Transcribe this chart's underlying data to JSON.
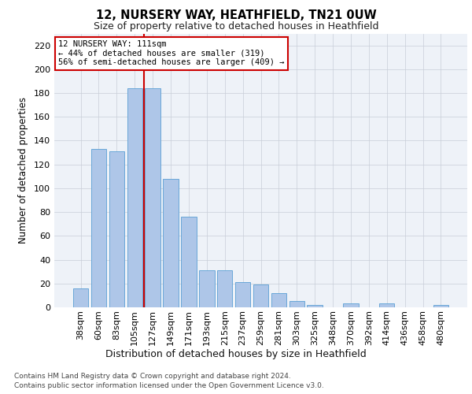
{
  "title1": "12, NURSERY WAY, HEATHFIELD, TN21 0UW",
  "title2": "Size of property relative to detached houses in Heathfield",
  "xlabel": "Distribution of detached houses by size in Heathfield",
  "ylabel": "Number of detached properties",
  "categories": [
    "38sqm",
    "60sqm",
    "83sqm",
    "105sqm",
    "127sqm",
    "149sqm",
    "171sqm",
    "193sqm",
    "215sqm",
    "237sqm",
    "259sqm",
    "281sqm",
    "303sqm",
    "325sqm",
    "348sqm",
    "370sqm",
    "392sqm",
    "414sqm",
    "436sqm",
    "458sqm",
    "480sqm"
  ],
  "values": [
    16,
    133,
    131,
    184,
    184,
    108,
    76,
    31,
    31,
    21,
    19,
    12,
    5,
    2,
    0,
    3,
    0,
    3,
    0,
    0,
    2
  ],
  "bar_color": "#aec6e8",
  "bar_edge_color": "#5a9fd4",
  "vline_x_index": 3,
  "vline_color": "#cc0000",
  "annotation_line1": "12 NURSERY WAY: 111sqm",
  "annotation_line2": "← 44% of detached houses are smaller (319)",
  "annotation_line3": "56% of semi-detached houses are larger (409) →",
  "annotation_box_color": "#ffffff",
  "annotation_box_edge": "#cc0000",
  "ylim": [
    0,
    230
  ],
  "yticks": [
    0,
    20,
    40,
    60,
    80,
    100,
    120,
    140,
    160,
    180,
    200,
    220
  ],
  "footer1": "Contains HM Land Registry data © Crown copyright and database right 2024.",
  "footer2": "Contains public sector information licensed under the Open Government Licence v3.0.",
  "bg_color": "#eef2f8",
  "grid_color": "#c8cdd8",
  "fig_bg_color": "#ffffff"
}
